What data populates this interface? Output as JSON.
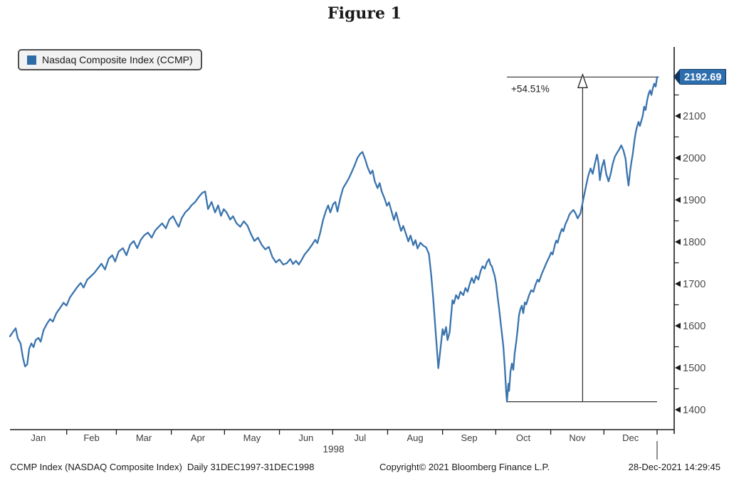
{
  "footer": {
    "left": "CCMP Index (NASDAQ Composite Index)  Daily 31DEC1997-31DEC1998",
    "center": "Copyright© 2021 Bloomberg Finance L.P.",
    "right": "28-Dec-2021 14:29:45"
  },
  "chart_data": {
    "type": "line",
    "title": "Figure 1",
    "last_price_label": "2192.69",
    "legend_position": "top-left",
    "grid": false,
    "style": {
      "line_color": "#3a74ae",
      "swatch_color": "#2e6ca8",
      "tag_bg": "#2d6fae",
      "tag_border": "#12355f",
      "axis_color": "#1a1a1a",
      "label_color": "#3c3c3c"
    },
    "annotation": {
      "label": "+54.51%",
      "from_value": 1419.12,
      "to_value": 2192.69,
      "arrow_day": 323,
      "span_start_day": 280.3,
      "span_end_day": 365
    },
    "y_axis": {
      "ticks": [
        1400,
        1500,
        1600,
        1700,
        1800,
        1900,
        2000,
        2100
      ],
      "minor_ticks": [
        1450,
        1550,
        1650,
        1750,
        1850,
        1950,
        2050,
        2150
      ],
      "ylim": [
        1360,
        2230
      ]
    },
    "x_axis": {
      "months": [
        "Jan",
        "Feb",
        "Mar",
        "Apr",
        "May",
        "Jun",
        "Jul",
        "Aug",
        "Sep",
        "Oct",
        "Nov",
        "Dec"
      ],
      "year": "1998",
      "unit": "days since 31DEC1997",
      "month_boundary_days": [
        32,
        60,
        91,
        121,
        152,
        182,
        213,
        244,
        274,
        305,
        335,
        365
      ],
      "month_center_days": [
        16,
        46,
        75.5,
        106,
        136.5,
        167,
        197.5,
        228.5,
        259,
        289.5,
        320,
        350
      ],
      "range_days": [
        0,
        365
      ]
    },
    "series": [
      {
        "name": "Nasdaq Composite Index (CCMP)",
        "points": [
          [
            0,
            1575
          ],
          [
            1.6,
            1585
          ],
          [
            3.2,
            1594
          ],
          [
            4.4,
            1570
          ],
          [
            6,
            1558
          ],
          [
            7.3,
            1524
          ],
          [
            8.5,
            1503
          ],
          [
            9.7,
            1508
          ],
          [
            10.9,
            1546
          ],
          [
            12.1,
            1558
          ],
          [
            13.3,
            1549
          ],
          [
            14.5,
            1566
          ],
          [
            16.1,
            1571
          ],
          [
            17.3,
            1562
          ],
          [
            19,
            1590
          ],
          [
            21,
            1606
          ],
          [
            22.6,
            1616
          ],
          [
            24.2,
            1610
          ],
          [
            26.2,
            1630
          ],
          [
            28.2,
            1642
          ],
          [
            30.2,
            1655
          ],
          [
            31.9,
            1648
          ],
          [
            33.9,
            1668
          ],
          [
            35.9,
            1680
          ],
          [
            37.9,
            1692
          ],
          [
            39.9,
            1702
          ],
          [
            41.5,
            1691
          ],
          [
            43.6,
            1710
          ],
          [
            45.6,
            1718
          ],
          [
            47.6,
            1726
          ],
          [
            49.6,
            1737
          ],
          [
            51.6,
            1748
          ],
          [
            53.6,
            1734
          ],
          [
            55.7,
            1760
          ],
          [
            57.7,
            1768
          ],
          [
            59.3,
            1753
          ],
          [
            61.3,
            1777
          ],
          [
            63.7,
            1785
          ],
          [
            65.7,
            1768
          ],
          [
            67.8,
            1793
          ],
          [
            69.8,
            1802
          ],
          [
            71.8,
            1785
          ],
          [
            73.8,
            1805
          ],
          [
            75.8,
            1816
          ],
          [
            77.8,
            1822
          ],
          [
            79.9,
            1810
          ],
          [
            81.9,
            1827
          ],
          [
            83.9,
            1836
          ],
          [
            85.9,
            1844
          ],
          [
            87.9,
            1832
          ],
          [
            89.9,
            1853
          ],
          [
            92,
            1861
          ],
          [
            94,
            1844
          ],
          [
            95.2,
            1836
          ],
          [
            96.8,
            1856
          ],
          [
            98.8,
            1870
          ],
          [
            100.8,
            1878
          ],
          [
            102.4,
            1887
          ],
          [
            104.5,
            1895
          ],
          [
            106.5,
            1907
          ],
          [
            108.5,
            1917
          ],
          [
            110.1,
            1920
          ],
          [
            111.7,
            1878
          ],
          [
            113.7,
            1895
          ],
          [
            115.7,
            1870
          ],
          [
            117.4,
            1887
          ],
          [
            119,
            1862
          ],
          [
            120.6,
            1878
          ],
          [
            122.2,
            1870
          ],
          [
            124.2,
            1853
          ],
          [
            125.8,
            1861
          ],
          [
            127.8,
            1844
          ],
          [
            129.9,
            1836
          ],
          [
            131.9,
            1849
          ],
          [
            133.9,
            1839
          ],
          [
            135.9,
            1819
          ],
          [
            137.9,
            1802
          ],
          [
            139.9,
            1810
          ],
          [
            142,
            1793
          ],
          [
            144,
            1782
          ],
          [
            146,
            1788
          ],
          [
            148,
            1764
          ],
          [
            150,
            1751
          ],
          [
            152,
            1758
          ],
          [
            154.1,
            1746
          ],
          [
            156.1,
            1749
          ],
          [
            158.1,
            1759
          ],
          [
            159.7,
            1747
          ],
          [
            161.3,
            1755
          ],
          [
            162.9,
            1746
          ],
          [
            164.5,
            1757
          ],
          [
            166.2,
            1770
          ],
          [
            168.2,
            1780
          ],
          [
            170.2,
            1792
          ],
          [
            172.2,
            1805
          ],
          [
            173.4,
            1797
          ],
          [
            175,
            1822
          ],
          [
            176.6,
            1852
          ],
          [
            178.3,
            1875
          ],
          [
            179.5,
            1887
          ],
          [
            180.7,
            1870
          ],
          [
            182.3,
            1890
          ],
          [
            183.5,
            1895
          ],
          [
            184.7,
            1872
          ],
          [
            186.3,
            1904
          ],
          [
            187.9,
            1928
          ],
          [
            189.6,
            1940
          ],
          [
            191.2,
            1952
          ],
          [
            192.8,
            1967
          ],
          [
            194.4,
            1982
          ],
          [
            196,
            2000
          ],
          [
            197.6,
            2010
          ],
          [
            198.8,
            2014
          ],
          [
            200.4,
            1996
          ],
          [
            201.7,
            1978
          ],
          [
            203.3,
            1962
          ],
          [
            204.5,
            1970
          ],
          [
            205.7,
            1945
          ],
          [
            207.3,
            1928
          ],
          [
            208.5,
            1940
          ],
          [
            209.7,
            1920
          ],
          [
            211.3,
            1903
          ],
          [
            212.6,
            1886
          ],
          [
            213.8,
            1894
          ],
          [
            215.4,
            1870
          ],
          [
            216.6,
            1852
          ],
          [
            217.8,
            1870
          ],
          [
            219.4,
            1844
          ],
          [
            220.6,
            1826
          ],
          [
            221.8,
            1838
          ],
          [
            223.4,
            1818
          ],
          [
            224.7,
            1801
          ],
          [
            225.9,
            1815
          ],
          [
            227.5,
            1792
          ],
          [
            228.7,
            1804
          ],
          [
            229.9,
            1784
          ],
          [
            231.5,
            1798
          ],
          [
            233.1,
            1791
          ],
          [
            234.7,
            1787
          ],
          [
            236.3,
            1771
          ],
          [
            237.6,
            1721
          ],
          [
            238.8,
            1661
          ],
          [
            240,
            1591
          ],
          [
            241.6,
            1499
          ],
          [
            242.8,
            1545
          ],
          [
            244,
            1592
          ],
          [
            244.8,
            1578
          ],
          [
            246,
            1597
          ],
          [
            246.8,
            1566
          ],
          [
            248,
            1585
          ],
          [
            249.6,
            1661
          ],
          [
            250.4,
            1653
          ],
          [
            251.6,
            1673
          ],
          [
            252.9,
            1664
          ],
          [
            254.1,
            1681
          ],
          [
            255.7,
            1673
          ],
          [
            256.9,
            1690
          ],
          [
            258.1,
            1681
          ],
          [
            259.3,
            1700
          ],
          [
            260.5,
            1714
          ],
          [
            261.7,
            1702
          ],
          [
            262.9,
            1719
          ],
          [
            264.2,
            1710
          ],
          [
            265.4,
            1730
          ],
          [
            266.6,
            1742
          ],
          [
            267.8,
            1736
          ],
          [
            269,
            1751
          ],
          [
            270.2,
            1759
          ],
          [
            271,
            1746
          ],
          [
            271.8,
            1742
          ],
          [
            272.6,
            1730
          ],
          [
            273.4,
            1719
          ],
          [
            274.2,
            1700
          ],
          [
            275,
            1670
          ],
          [
            275.9,
            1640
          ],
          [
            276.7,
            1610
          ],
          [
            277.5,
            1580
          ],
          [
            278.3,
            1550
          ],
          [
            279.1,
            1500
          ],
          [
            279.5,
            1470
          ],
          [
            279.9,
            1440
          ],
          [
            280.3,
            1419.12
          ],
          [
            281.1,
            1462
          ],
          [
            281.5,
            1445
          ],
          [
            282.3,
            1490
          ],
          [
            283.1,
            1510
          ],
          [
            283.9,
            1495
          ],
          [
            284.7,
            1535
          ],
          [
            285.5,
            1560
          ],
          [
            286.3,
            1590
          ],
          [
            287.1,
            1625
          ],
          [
            287.9,
            1640
          ],
          [
            288.7,
            1648
          ],
          [
            289.5,
            1630
          ],
          [
            290.4,
            1656
          ],
          [
            291.2,
            1651
          ],
          [
            292.8,
            1673
          ],
          [
            294,
            1685
          ],
          [
            295.2,
            1681
          ],
          [
            296.4,
            1698
          ],
          [
            297.6,
            1710
          ],
          [
            298.4,
            1705
          ],
          [
            300,
            1724
          ],
          [
            301.2,
            1736
          ],
          [
            302.5,
            1749
          ],
          [
            304.1,
            1763
          ],
          [
            305.3,
            1775
          ],
          [
            306.1,
            1770
          ],
          [
            307.3,
            1792
          ],
          [
            308.1,
            1803
          ],
          [
            308.9,
            1798
          ],
          [
            310.1,
            1817
          ],
          [
            311.3,
            1831
          ],
          [
            312.1,
            1825
          ],
          [
            313.3,
            1842
          ],
          [
            314.6,
            1854
          ],
          [
            315.4,
            1864
          ],
          [
            316.6,
            1871
          ],
          [
            317.8,
            1876
          ],
          [
            319,
            1868
          ],
          [
            320.2,
            1856
          ],
          [
            321.8,
            1868
          ],
          [
            322.6,
            1885
          ],
          [
            323.8,
            1910
          ],
          [
            325,
            1935
          ],
          [
            326.2,
            1958
          ],
          [
            327.5,
            1975
          ],
          [
            328.7,
            1962
          ],
          [
            329.9,
            1986
          ],
          [
            331.1,
            2008
          ],
          [
            331.9,
            1988
          ],
          [
            332.7,
            1947
          ],
          [
            333.9,
            1978
          ],
          [
            335.1,
            1995
          ],
          [
            336.3,
            1962
          ],
          [
            337.6,
            1944
          ],
          [
            338.8,
            1962
          ],
          [
            340,
            1986
          ],
          [
            341.2,
            2003
          ],
          [
            342.4,
            2012
          ],
          [
            343.6,
            2020
          ],
          [
            344.8,
            2030
          ],
          [
            346,
            2018
          ],
          [
            347.2,
            1998
          ],
          [
            348.1,
            1960
          ],
          [
            348.9,
            1934
          ],
          [
            349.7,
            1966
          ],
          [
            350.5,
            1990
          ],
          [
            351.3,
            2010
          ],
          [
            352.1,
            2038
          ],
          [
            352.9,
            2060
          ],
          [
            353.7,
            2075
          ],
          [
            354.5,
            2086
          ],
          [
            355.3,
            2076
          ],
          [
            356.1,
            2088
          ],
          [
            356.9,
            2100
          ],
          [
            357.7,
            2122
          ],
          [
            358.5,
            2114
          ],
          [
            359.4,
            2138
          ],
          [
            360.2,
            2152
          ],
          [
            361,
            2161
          ],
          [
            361.8,
            2150
          ],
          [
            362.6,
            2166
          ],
          [
            363.4,
            2177
          ],
          [
            364.2,
            2170
          ],
          [
            365,
            2192.69
          ]
        ]
      }
    ]
  }
}
